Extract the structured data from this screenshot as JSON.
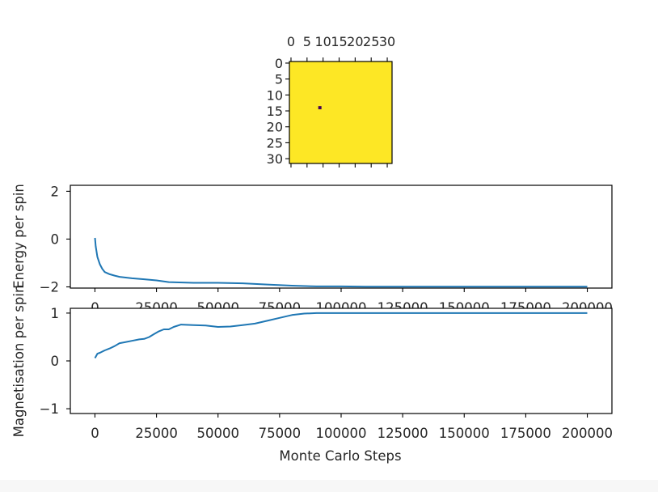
{
  "colors": {
    "line": "#1f77b4",
    "spin_up": "#fde725",
    "spin_down": "#440154",
    "axes": "#000000",
    "text": "#262626"
  },
  "chart_data": [
    {
      "type": "heatmap",
      "title": "",
      "grid": false,
      "x_ticks": [
        "0",
        "5",
        "10",
        "15",
        "20",
        "25",
        "30"
      ],
      "y_ticks": [
        "0",
        "5",
        "10",
        "15",
        "20",
        "25",
        "30"
      ],
      "lattice_size": 32,
      "majority_value": 1,
      "flipped_cells": [
        {
          "row": 14,
          "col": 9,
          "value": -1
        }
      ]
    },
    {
      "type": "line",
      "ylabel": "Energy per spin",
      "ylim": [
        -2.05,
        2.25
      ],
      "xlim": [
        -10000,
        210000
      ],
      "x_ticks": [
        "0",
        "25000",
        "50000",
        "75000",
        "100000",
        "125000",
        "150000",
        "175000",
        "200000"
      ],
      "y_ticks": [
        "2",
        "0",
        "−2"
      ],
      "series": [
        {
          "x": [
            0,
            300,
            1000,
            2000,
            3000,
            4000,
            6000,
            8000,
            10000,
            15000,
            20000,
            25000,
            30000,
            40000,
            50000,
            60000,
            70000,
            80000,
            90000,
            100000,
            110000,
            125000,
            150000,
            175000,
            200000
          ],
          "values": [
            0.05,
            -0.3,
            -0.75,
            -1.05,
            -1.25,
            -1.38,
            -1.47,
            -1.53,
            -1.58,
            -1.64,
            -1.68,
            -1.73,
            -1.8,
            -1.83,
            -1.83,
            -1.85,
            -1.9,
            -1.95,
            -1.98,
            -1.98,
            -1.99,
            -1.99,
            -1.99,
            -1.99,
            -1.99
          ]
        }
      ]
    },
    {
      "type": "line",
      "xlabel": "Monte Carlo Steps",
      "ylabel": "Magnetisation per spin",
      "ylim": [
        -1.1,
        1.1
      ],
      "xlim": [
        -10000,
        210000
      ],
      "x_ticks": [
        "0",
        "25000",
        "50000",
        "75000",
        "100000",
        "125000",
        "150000",
        "175000",
        "200000"
      ],
      "y_ticks": [
        "1",
        "0",
        "−1"
      ],
      "series": [
        {
          "x": [
            0,
            1000,
            2000,
            4000,
            6000,
            8000,
            10000,
            12000,
            15000,
            18000,
            20000,
            22000,
            24000,
            26000,
            28000,
            30000,
            32000,
            35000,
            40000,
            45000,
            50000,
            55000,
            60000,
            65000,
            70000,
            75000,
            80000,
            85000,
            90000,
            100000,
            125000,
            150000,
            175000,
            200000
          ],
          "values": [
            0.06,
            0.15,
            0.17,
            0.22,
            0.26,
            0.31,
            0.37,
            0.39,
            0.42,
            0.45,
            0.46,
            0.5,
            0.56,
            0.62,
            0.66,
            0.66,
            0.71,
            0.76,
            0.75,
            0.74,
            0.71,
            0.72,
            0.75,
            0.78,
            0.84,
            0.9,
            0.96,
            0.99,
            1.0,
            1.0,
            1.0,
            1.0,
            1.0,
            1.0
          ]
        }
      ]
    }
  ]
}
